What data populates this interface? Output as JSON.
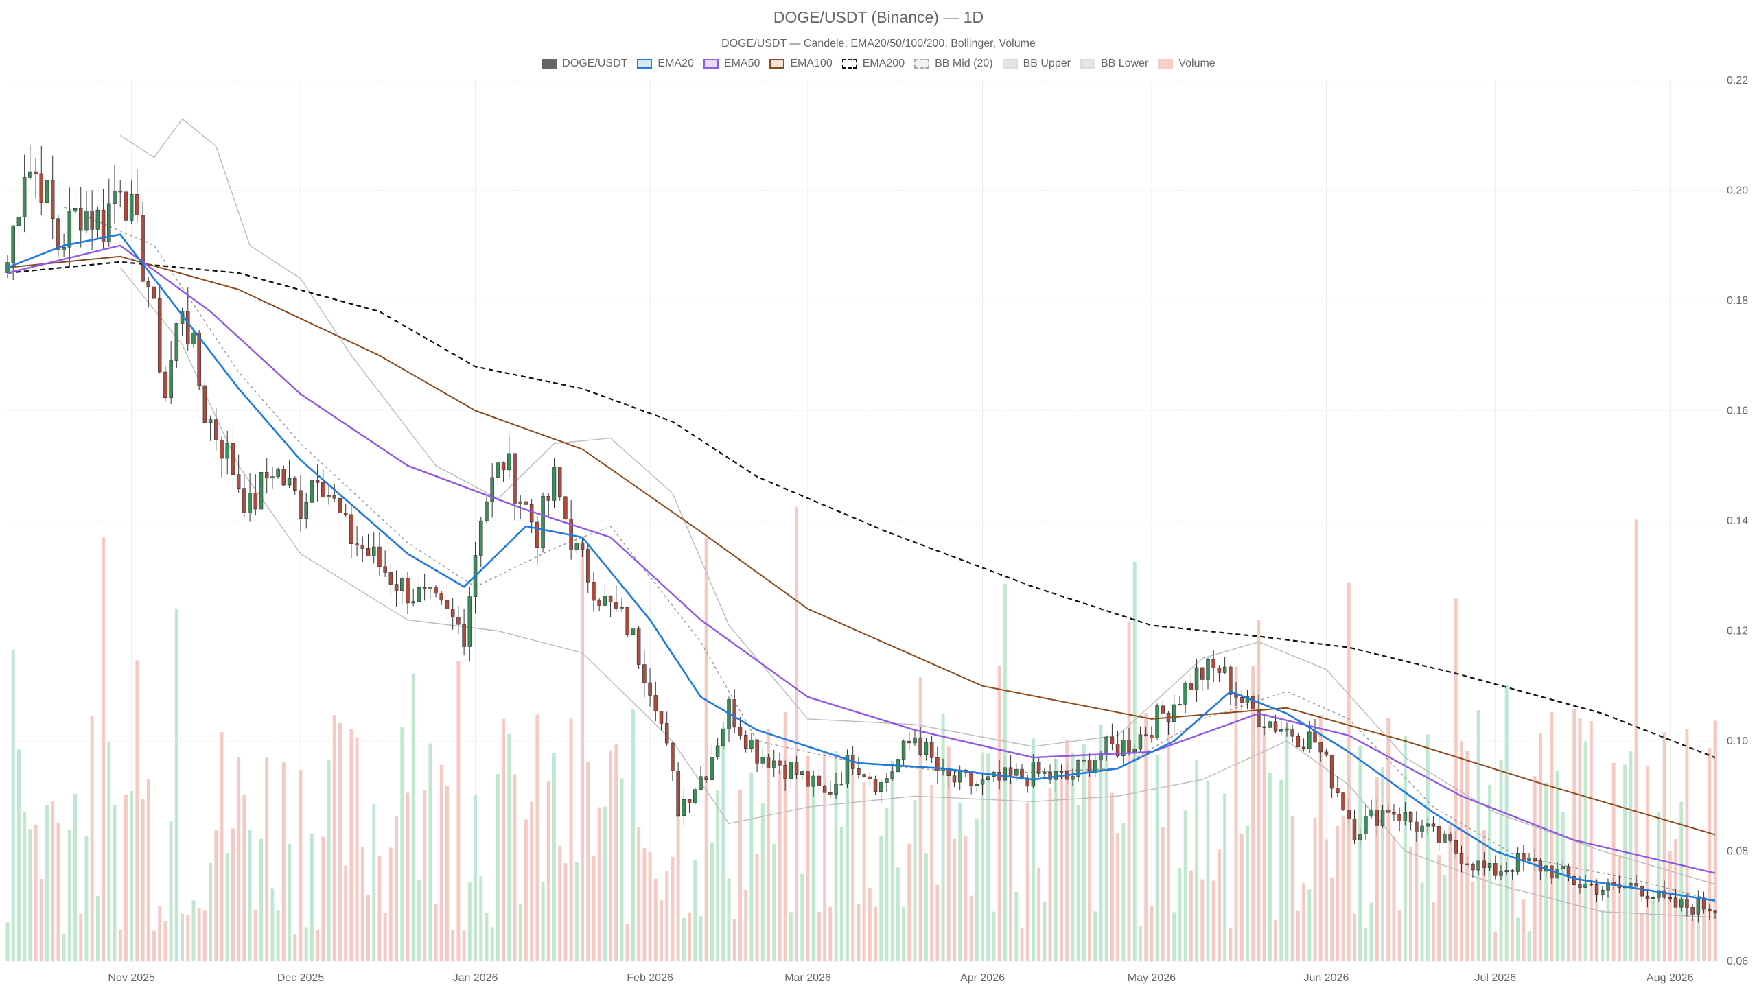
{
  "title": "DOGE/USDT (Binance) — 1D",
  "subtitle": "DOGE/USDT — Candele, EMA20/50/100/200, Bollinger, Volume",
  "legend": [
    {
      "key": "candles",
      "label": "DOGE/USDT",
      "fill": "#666666",
      "border": "#666666",
      "dash": "solid"
    },
    {
      "key": "ema20",
      "label": "EMA20",
      "fill": "#d6e9fb",
      "border": "#1f7ae0",
      "dash": "solid"
    },
    {
      "key": "ema50",
      "label": "EMA50",
      "fill": "#e9dcfb",
      "border": "#8f59e6",
      "dash": "solid"
    },
    {
      "key": "ema100",
      "label": "EMA100",
      "fill": "#f1e2d4",
      "border": "#8b4b1e",
      "dash": "solid"
    },
    {
      "key": "ema200",
      "label": "EMA200",
      "fill": "#ffffff",
      "border": "#111111",
      "dash": "dashed"
    },
    {
      "key": "bbmid",
      "label": "BB Mid (20)",
      "fill": "#f3f3f3",
      "border": "#aaaaaa",
      "dash": "dashed"
    },
    {
      "key": "bbupper",
      "label": "BB Upper",
      "fill": "#e4e4e4",
      "border": "#dddddd",
      "dash": "solid"
    },
    {
      "key": "bblower",
      "label": "BB Lower",
      "fill": "#e4e4e4",
      "border": "#dddddd",
      "dash": "solid"
    },
    {
      "key": "volume",
      "label": "Volume",
      "fill": "#f6cdc7",
      "border": "#f6cdc7",
      "dash": "solid"
    }
  ],
  "colors": {
    "up": "#3a8f5a",
    "down": "#b04a3c",
    "vol_up": "#bfe8cf",
    "vol_down": "#f6cac3",
    "ema20": "#1f7ae0",
    "ema50": "#8f59e6",
    "ema100": "#8b4b1e",
    "ema200": "#111111",
    "bb": "#bbbbbb",
    "bbmid": "#999999",
    "grid": "#ececec"
  },
  "chart_data": {
    "type": "candlestick",
    "interval": "1D",
    "x_start": "2025-10-10",
    "x_end": "2026-08-09",
    "ylim": [
      0.06,
      0.22
    ],
    "y_ticks": [
      "0.06",
      "0.08",
      "0.10",
      "0.12",
      "0.14",
      "0.16",
      "0.18",
      "0.20",
      "0.22"
    ],
    "x_ticks": [
      {
        "date": "2025-11-01",
        "label": "Nov 2025"
      },
      {
        "date": "2025-12-01",
        "label": "Dec 2025"
      },
      {
        "date": "2026-01-01",
        "label": "Jan 2026"
      },
      {
        "date": "2026-02-01",
        "label": "Feb 2026"
      },
      {
        "date": "2026-03-01",
        "label": "Mar 2026"
      },
      {
        "date": "2026-04-01",
        "label": "Apr 2026"
      },
      {
        "date": "2026-05-01",
        "label": "May 2026"
      },
      {
        "date": "2026-06-01",
        "label": "Jun 2026"
      },
      {
        "date": "2026-07-01",
        "label": "Jul 2026"
      },
      {
        "date": "2026-08-01",
        "label": "Aug 2026"
      }
    ],
    "close_anchors": [
      [
        "2025-10-10",
        0.187
      ],
      [
        "2025-10-13",
        0.205
      ],
      [
        "2025-10-16",
        0.202
      ],
      [
        "2025-10-19",
        0.19
      ],
      [
        "2025-10-23",
        0.197
      ],
      [
        "2025-10-27",
        0.194
      ],
      [
        "2025-10-30",
        0.203
      ],
      [
        "2025-11-04",
        0.183
      ],
      [
        "2025-11-07",
        0.163
      ],
      [
        "2025-11-10",
        0.18
      ],
      [
        "2025-11-14",
        0.16
      ],
      [
        "2025-11-18",
        0.152
      ],
      [
        "2025-11-22",
        0.142
      ],
      [
        "2025-11-26",
        0.15
      ],
      [
        "2025-12-01",
        0.143
      ],
      [
        "2025-12-04",
        0.15
      ],
      [
        "2025-12-09",
        0.138
      ],
      [
        "2025-12-15",
        0.132
      ],
      [
        "2025-12-19",
        0.128
      ],
      [
        "2025-12-24",
        0.125
      ],
      [
        "2025-12-30",
        0.12
      ],
      [
        "2026-01-02",
        0.142
      ],
      [
        "2026-01-06",
        0.151
      ],
      [
        "2026-01-12",
        0.138
      ],
      [
        "2026-01-15",
        0.147
      ],
      [
        "2026-01-19",
        0.134
      ],
      [
        "2026-01-24",
        0.125
      ],
      [
        "2026-01-28",
        0.121
      ],
      [
        "2026-02-02",
        0.108
      ],
      [
        "2026-02-06",
        0.088
      ],
      [
        "2026-02-11",
        0.095
      ],
      [
        "2026-02-15",
        0.106
      ],
      [
        "2026-02-20",
        0.098
      ],
      [
        "2026-02-26",
        0.095
      ],
      [
        "2026-03-04",
        0.09
      ],
      [
        "2026-03-09",
        0.097
      ],
      [
        "2026-03-14",
        0.092
      ],
      [
        "2026-03-20",
        0.101
      ],
      [
        "2026-03-25",
        0.093
      ],
      [
        "2026-04-01",
        0.092
      ],
      [
        "2026-04-10",
        0.094
      ],
      [
        "2026-04-16",
        0.093
      ],
      [
        "2026-04-22",
        0.098
      ],
      [
        "2026-04-28",
        0.1
      ],
      [
        "2026-05-04",
        0.106
      ],
      [
        "2026-05-09",
        0.112
      ],
      [
        "2026-05-13",
        0.113
      ],
      [
        "2026-05-18",
        0.106
      ],
      [
        "2026-05-23",
        0.103
      ],
      [
        "2026-05-30",
        0.1
      ],
      [
        "2026-06-03",
        0.091
      ],
      [
        "2026-06-06",
        0.084
      ],
      [
        "2026-06-12",
        0.088
      ],
      [
        "2026-06-18",
        0.084
      ],
      [
        "2026-06-24",
        0.08
      ],
      [
        "2026-06-30",
        0.076
      ],
      [
        "2026-07-05",
        0.078
      ],
      [
        "2026-07-10",
        0.077
      ],
      [
        "2026-07-16",
        0.074
      ],
      [
        "2026-07-22",
        0.073
      ],
      [
        "2026-07-26",
        0.074
      ],
      [
        "2026-08-01",
        0.07
      ],
      [
        "2026-08-09",
        0.07
      ]
    ],
    "series": [
      {
        "name": "EMA20",
        "points": [
          [
            "2025-10-10",
            0.186
          ],
          [
            "2025-10-20",
            0.19
          ],
          [
            "2025-10-30",
            0.192
          ],
          [
            "2025-11-08",
            0.18
          ],
          [
            "2025-11-20",
            0.164
          ],
          [
            "2025-12-01",
            0.151
          ],
          [
            "2025-12-20",
            0.134
          ],
          [
            "2025-12-30",
            0.128
          ],
          [
            "2026-01-10",
            0.139
          ],
          [
            "2026-01-20",
            0.137
          ],
          [
            "2026-02-01",
            0.122
          ],
          [
            "2026-02-10",
            0.108
          ],
          [
            "2026-02-20",
            0.102
          ],
          [
            "2026-03-10",
            0.096
          ],
          [
            "2026-03-25",
            0.095
          ],
          [
            "2026-04-10",
            0.093
          ],
          [
            "2026-04-25",
            0.095
          ],
          [
            "2026-05-05",
            0.1
          ],
          [
            "2026-05-15",
            0.109
          ],
          [
            "2026-05-25",
            0.105
          ],
          [
            "2026-06-05",
            0.098
          ],
          [
            "2026-06-20",
            0.087
          ],
          [
            "2026-07-01",
            0.08
          ],
          [
            "2026-07-15",
            0.075
          ],
          [
            "2026-08-09",
            0.071
          ]
        ]
      },
      {
        "name": "EMA50",
        "points": [
          [
            "2025-10-10",
            0.185
          ],
          [
            "2025-10-30",
            0.19
          ],
          [
            "2025-11-15",
            0.178
          ],
          [
            "2025-12-01",
            0.163
          ],
          [
            "2025-12-20",
            0.15
          ],
          [
            "2026-01-10",
            0.142
          ],
          [
            "2026-01-25",
            0.137
          ],
          [
            "2026-02-10",
            0.122
          ],
          [
            "2026-03-01",
            0.108
          ],
          [
            "2026-03-20",
            0.102
          ],
          [
            "2026-04-10",
            0.097
          ],
          [
            "2026-05-01",
            0.098
          ],
          [
            "2026-05-20",
            0.105
          ],
          [
            "2026-06-05",
            0.101
          ],
          [
            "2026-06-25",
            0.09
          ],
          [
            "2026-07-15",
            0.082
          ],
          [
            "2026-08-09",
            0.076
          ]
        ]
      },
      {
        "name": "EMA100",
        "points": [
          [
            "2025-10-10",
            0.186
          ],
          [
            "2025-10-30",
            0.188
          ],
          [
            "2025-11-20",
            0.182
          ],
          [
            "2025-12-15",
            0.17
          ],
          [
            "2026-01-01",
            0.16
          ],
          [
            "2026-01-20",
            0.153
          ],
          [
            "2026-02-10",
            0.138
          ],
          [
            "2026-03-01",
            0.124
          ],
          [
            "2026-04-01",
            0.11
          ],
          [
            "2026-05-01",
            0.104
          ],
          [
            "2026-05-25",
            0.106
          ],
          [
            "2026-06-15",
            0.1
          ],
          [
            "2026-07-10",
            0.092
          ],
          [
            "2026-08-09",
            0.083
          ]
        ]
      },
      {
        "name": "EMA200",
        "points": [
          [
            "2025-10-10",
            0.185
          ],
          [
            "2025-10-30",
            0.187
          ],
          [
            "2025-11-20",
            0.185
          ],
          [
            "2025-12-15",
            0.178
          ],
          [
            "2026-01-01",
            0.168
          ],
          [
            "2026-01-20",
            0.164
          ],
          [
            "2026-02-05",
            0.158
          ],
          [
            "2026-02-20",
            0.148
          ],
          [
            "2026-03-15",
            0.138
          ],
          [
            "2026-04-10",
            0.128
          ],
          [
            "2026-05-01",
            0.121
          ],
          [
            "2026-05-20",
            0.119
          ],
          [
            "2026-06-05",
            0.117
          ],
          [
            "2026-06-25",
            0.112
          ],
          [
            "2026-07-20",
            0.105
          ],
          [
            "2026-08-09",
            0.097
          ]
        ]
      },
      {
        "name": "BB Mid (20)",
        "points": [
          [
            "2025-10-20",
            0.197
          ],
          [
            "2025-11-05",
            0.19
          ],
          [
            "2025-11-20",
            0.167
          ],
          [
            "2025-12-01",
            0.154
          ],
          [
            "2025-12-20",
            0.136
          ],
          [
            "2026-01-01",
            0.128
          ],
          [
            "2026-01-15",
            0.135
          ],
          [
            "2026-01-25",
            0.139
          ],
          [
            "2026-02-10",
            0.118
          ],
          [
            "2026-02-20",
            0.1
          ],
          [
            "2026-03-10",
            0.096
          ],
          [
            "2026-04-01",
            0.094
          ],
          [
            "2026-04-25",
            0.095
          ],
          [
            "2026-05-10",
            0.104
          ],
          [
            "2026-05-25",
            0.109
          ],
          [
            "2026-06-05",
            0.104
          ],
          [
            "2026-06-20",
            0.088
          ],
          [
            "2026-07-05",
            0.079
          ],
          [
            "2026-07-25",
            0.075
          ],
          [
            "2026-08-09",
            0.071
          ]
        ]
      },
      {
        "name": "BB Upper",
        "points": [
          [
            "2025-10-30",
            0.21
          ],
          [
            "2025-11-05",
            0.206
          ],
          [
            "2025-11-10",
            0.213
          ],
          [
            "2025-11-16",
            0.208
          ],
          [
            "2025-11-22",
            0.19
          ],
          [
            "2025-12-01",
            0.184
          ],
          [
            "2025-12-10",
            0.17
          ],
          [
            "2025-12-25",
            0.15
          ],
          [
            "2026-01-05",
            0.144
          ],
          [
            "2026-01-15",
            0.154
          ],
          [
            "2026-01-25",
            0.155
          ],
          [
            "2026-02-05",
            0.145
          ],
          [
            "2026-02-15",
            0.121
          ],
          [
            "2026-03-01",
            0.104
          ],
          [
            "2026-03-20",
            0.103
          ],
          [
            "2026-04-10",
            0.099
          ],
          [
            "2026-04-25",
            0.101
          ],
          [
            "2026-05-10",
            0.115
          ],
          [
            "2026-05-20",
            0.118
          ],
          [
            "2026-06-01",
            0.113
          ],
          [
            "2026-06-15",
            0.097
          ],
          [
            "2026-07-01",
            0.087
          ],
          [
            "2026-07-20",
            0.08
          ],
          [
            "2026-08-09",
            0.074
          ]
        ]
      },
      {
        "name": "BB Lower",
        "points": [
          [
            "2025-10-30",
            0.186
          ],
          [
            "2025-11-10",
            0.172
          ],
          [
            "2025-11-20",
            0.15
          ],
          [
            "2025-12-01",
            0.134
          ],
          [
            "2025-12-20",
            0.122
          ],
          [
            "2026-01-05",
            0.12
          ],
          [
            "2026-01-20",
            0.116
          ],
          [
            "2026-02-05",
            0.1
          ],
          [
            "2026-02-15",
            0.085
          ],
          [
            "2026-03-01",
            0.088
          ],
          [
            "2026-03-20",
            0.09
          ],
          [
            "2026-04-10",
            0.089
          ],
          [
            "2026-04-25",
            0.09
          ],
          [
            "2026-05-10",
            0.093
          ],
          [
            "2026-05-25",
            0.1
          ],
          [
            "2026-06-05",
            0.092
          ],
          [
            "2026-06-15",
            0.08
          ],
          [
            "2026-07-01",
            0.074
          ],
          [
            "2026-07-20",
            0.069
          ],
          [
            "2026-08-09",
            0.068
          ]
        ]
      }
    ]
  }
}
